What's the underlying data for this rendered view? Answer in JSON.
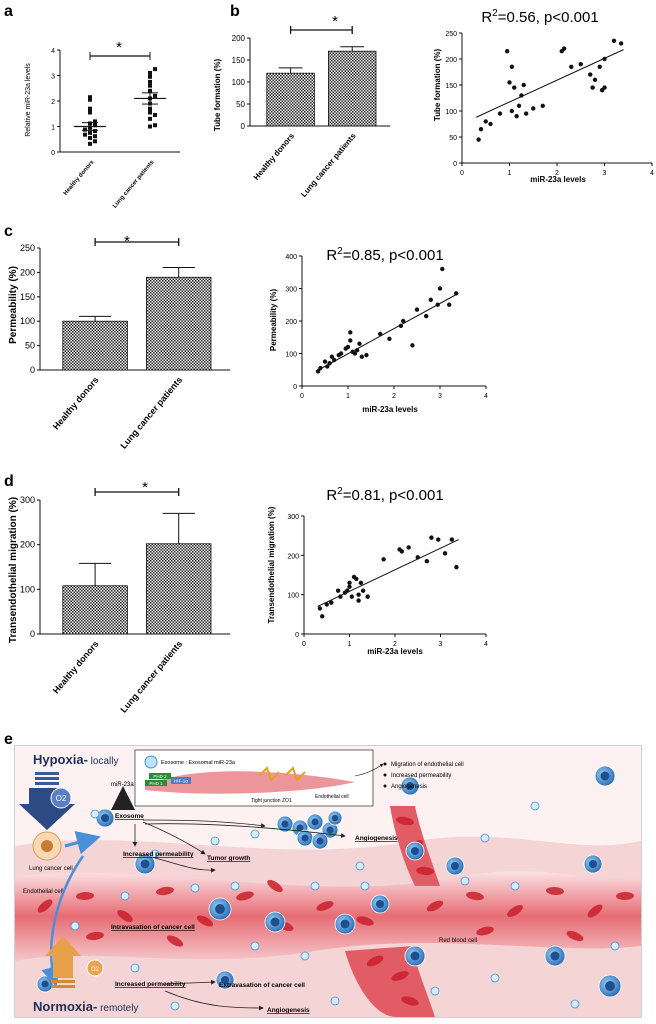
{
  "panels": {
    "a": {
      "label": "a"
    },
    "b": {
      "label": "b",
      "stat": "R2=0.56, p<0.001",
      "stat_base": "R",
      "stat_sup": "2",
      "stat_rest": "=0.56, p<0.001"
    },
    "c": {
      "label": "c",
      "stat_base": "R",
      "stat_sup": "2",
      "stat_rest": "=0.85, p<0.001"
    },
    "d": {
      "label": "d",
      "stat_base": "R",
      "stat_sup": "2",
      "stat_rest": "=0.81, p<0.001"
    },
    "e": {
      "label": "e"
    }
  },
  "star": "*",
  "chart_data": [
    {
      "id": "a",
      "type": "scatter",
      "ylabel": "Relative miR-23a levels",
      "categories": [
        "Healthy donors",
        "Lung cancer patients"
      ],
      "ylim": [
        0,
        4
      ],
      "yticks": [
        0,
        1,
        2,
        3,
        4
      ],
      "points": [
        [
          1,
          0.32
        ],
        [
          1,
          0.42
        ],
        [
          1,
          0.55
        ],
        [
          1,
          0.62
        ],
        [
          1,
          0.68
        ],
        [
          1,
          0.75
        ],
        [
          1,
          0.82
        ],
        [
          1,
          0.88
        ],
        [
          1,
          0.95
        ],
        [
          1,
          1.05
        ],
        [
          1,
          1.12
        ],
        [
          1,
          1.2
        ],
        [
          1,
          1.55
        ],
        [
          1,
          1.7
        ],
        [
          1,
          2.05
        ],
        [
          1,
          2.15
        ],
        [
          2,
          1.0
        ],
        [
          2,
          1.05
        ],
        [
          2,
          1.3
        ],
        [
          2,
          1.45
        ],
        [
          2,
          1.55
        ],
        [
          2,
          1.7
        ],
        [
          2,
          1.9
        ],
        [
          2,
          2.1
        ],
        [
          2,
          2.2
        ],
        [
          2,
          2.4
        ],
        [
          2,
          2.6
        ],
        [
          2,
          2.75
        ],
        [
          2,
          2.95
        ],
        [
          2,
          3.1
        ],
        [
          2,
          3.25
        ]
      ],
      "means": [
        1.0,
        2.1
      ],
      "sem": [
        0.15,
        0.22
      ]
    },
    {
      "id": "b-bar",
      "type": "bar",
      "ylabel": "Tube formation (%)",
      "categories": [
        "Healthy donors",
        "Lung cancer patients"
      ],
      "values": [
        120,
        170
      ],
      "err": [
        12,
        10
      ],
      "ylim": [
        0,
        200
      ],
      "yticks": [
        0,
        50,
        100,
        150,
        200
      ]
    },
    {
      "id": "b-scatter",
      "type": "scatter",
      "xlabel": "miR-23a levels",
      "ylabel": "Tube formation (%)",
      "xlim": [
        0,
        4
      ],
      "ylim": [
        0,
        250
      ],
      "xticks": [
        0,
        1,
        2,
        3,
        4
      ],
      "yticks": [
        0,
        50,
        100,
        150,
        200,
        250
      ],
      "x": [
        0.35,
        0.4,
        0.5,
        0.6,
        0.8,
        0.95,
        1.0,
        1.05,
        1.1,
        1.15,
        1.2,
        1.25,
        1.3,
        1.35,
        1.5,
        1.7,
        2.1,
        2.15,
        2.3,
        2.5,
        2.7,
        2.75,
        2.8,
        2.9,
        2.95,
        3.0,
        3.2,
        3.35,
        3.0,
        1.05
      ],
      "y": [
        45,
        65,
        80,
        75,
        95,
        215,
        155,
        100,
        145,
        90,
        110,
        130,
        150,
        95,
        105,
        110,
        215,
        220,
        185,
        190,
        170,
        145,
        160,
        185,
        140,
        200,
        235,
        230,
        145,
        185
      ],
      "fit": [
        [
          0.3,
          88
        ],
        [
          3.4,
          218
        ]
      ]
    },
    {
      "id": "c-bar",
      "type": "bar",
      "ylabel": "Permeability (%)",
      "categories": [
        "Healthy donors",
        "Lung cancer patients"
      ],
      "values": [
        100,
        190
      ],
      "err": [
        10,
        20
      ],
      "ylim": [
        0,
        250
      ],
      "yticks": [
        0,
        50,
        100,
        150,
        200,
        250
      ]
    },
    {
      "id": "c-scatter",
      "type": "scatter",
      "xlabel": "miR-23a levels",
      "ylabel": "Permeability (%)",
      "xlim": [
        0,
        4
      ],
      "ylim": [
        0,
        400
      ],
      "xticks": [
        0,
        1,
        2,
        3,
        4
      ],
      "yticks": [
        0,
        100,
        200,
        300,
        400
      ],
      "x": [
        0.35,
        0.4,
        0.5,
        0.55,
        0.65,
        0.7,
        0.8,
        0.85,
        0.95,
        1.0,
        1.05,
        1.1,
        1.15,
        1.2,
        1.25,
        1.3,
        1.4,
        1.7,
        1.9,
        2.15,
        2.2,
        2.4,
        2.5,
        2.7,
        2.8,
        2.95,
        3.0,
        3.05,
        3.2,
        3.35,
        1.05,
        0.6
      ],
      "y": [
        45,
        55,
        75,
        60,
        90,
        80,
        95,
        100,
        115,
        120,
        165,
        105,
        100,
        110,
        130,
        90,
        95,
        160,
        145,
        185,
        200,
        125,
        235,
        215,
        265,
        250,
        300,
        360,
        250,
        285,
        140,
        70
      ],
      "fit": [
        [
          0.3,
          45
        ],
        [
          3.4,
          285
        ]
      ]
    },
    {
      "id": "d-bar",
      "type": "bar",
      "ylabel": "Transendothelial migration (%)",
      "categories": [
        "Healthy donors",
        "Lung cancer patients"
      ],
      "values": [
        108,
        202
      ],
      "err": [
        50,
        68
      ],
      "ylim": [
        0,
        300
      ],
      "yticks": [
        0,
        100,
        200,
        300
      ]
    },
    {
      "id": "d-scatter",
      "type": "scatter",
      "xlabel": "miR-23a levels",
      "ylabel": "Transendothelial migration (%)",
      "xlim": [
        0,
        4
      ],
      "ylim": [
        0,
        300
      ],
      "xticks": [
        0,
        1,
        2,
        3,
        4
      ],
      "yticks": [
        0,
        100,
        200,
        300
      ],
      "x": [
        0.35,
        0.4,
        0.5,
        0.6,
        0.75,
        0.8,
        0.9,
        0.95,
        1.0,
        1.05,
        1.1,
        1.15,
        1.2,
        1.25,
        1.3,
        1.4,
        1.75,
        2.1,
        2.15,
        2.3,
        2.5,
        2.7,
        2.8,
        2.95,
        3.1,
        3.25,
        3.35,
        1.2,
        0.6,
        1.0
      ],
      "y": [
        65,
        45,
        75,
        80,
        110,
        95,
        105,
        110,
        130,
        95,
        145,
        140,
        100,
        130,
        110,
        95,
        190,
        215,
        210,
        220,
        195,
        185,
        245,
        240,
        205,
        240,
        170,
        85,
        80,
        120
      ],
      "fit": [
        [
          0.3,
          70
        ],
        [
          3.4,
          240
        ]
      ]
    }
  ],
  "schematic": {
    "hypoxia_bold": "Hypoxia-",
    "hypoxia_rest": " locally",
    "normoxia_bold": "Normoxia-",
    "normoxia_rest": " remotely",
    "o2": "O2",
    "lung_cancer_cell": "Lung cancer cell",
    "mir23a": "miR-23a",
    "exosome": "Exosome",
    "endothelial_cell": "Endothelial cell",
    "increased_permeability": "Increased permeability",
    "tumor_growth": "Tumor growth",
    "angiogenesis": "Angiogenesis",
    "intravasation": "Intravasation of cancer cell",
    "extravasation": "Extravasation of cancer cell",
    "red_blood_cell": "Red blood cell",
    "inset_exosome": "Exosome : Exosomal miR-23a",
    "tight_junction": "Tight junction ZO1",
    "inset_endothelial": "Endothelial cell",
    "phd1": "PHD 1",
    "phd2": "PHD 2",
    "hif": "HIF-1α",
    "effects": [
      "Migration of endothelial cell",
      "Increased permeability",
      "Angiogenesis"
    ],
    "colors": {
      "vessel": "#e0525c",
      "tissue": "#f2c9cc",
      "cancer": "#2e6fb7",
      "arrow": "#4a90d9"
    }
  }
}
